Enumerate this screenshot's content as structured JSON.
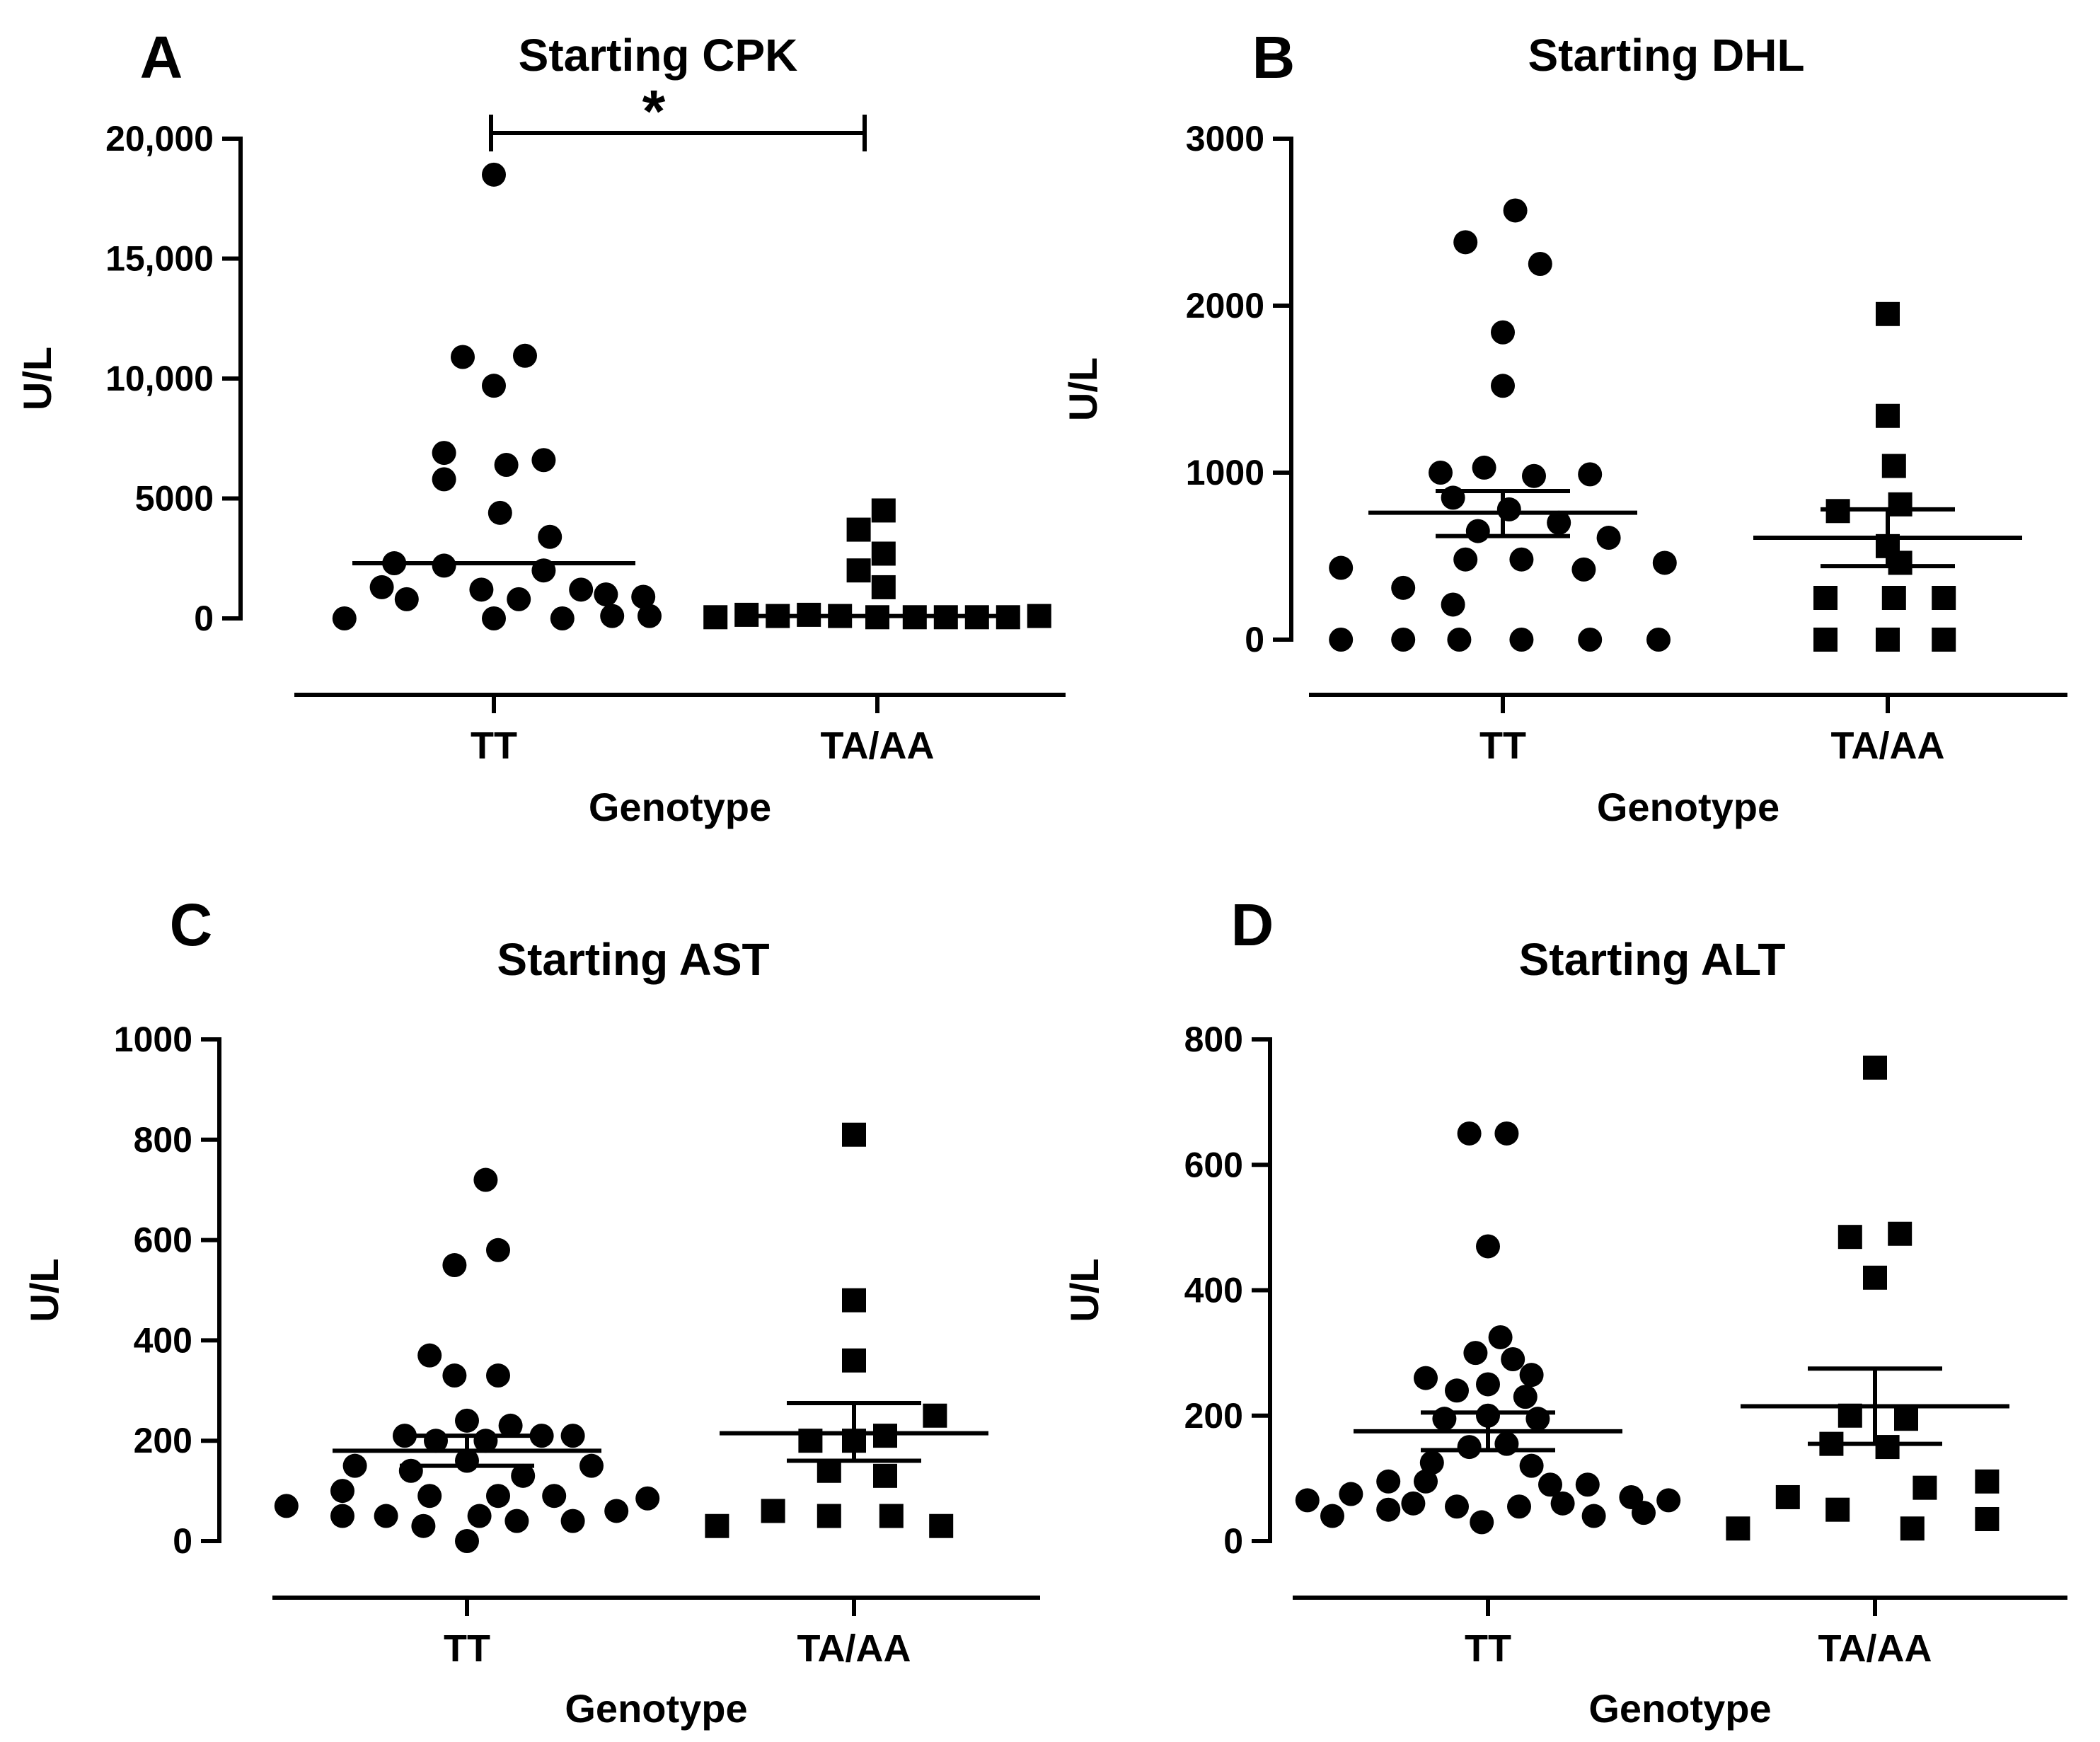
{
  "chart_data": [
    {
      "type": "scatter",
      "panel": "A",
      "title": "Starting CPK",
      "xlabel": "Genotype",
      "ylabel": "U/L",
      "ylim": [
        0,
        20000
      ],
      "yticks": [
        0,
        5000,
        10000,
        15000,
        20000
      ],
      "ytick_labels": [
        "0",
        "5000",
        "10,000",
        "15,000",
        "20,000"
      ],
      "categories": [
        "TT",
        "TA/AA"
      ],
      "significance": {
        "label": "*",
        "between": [
          "TT",
          "TA/AA"
        ]
      },
      "series": [
        {
          "name": "TT",
          "marker": "circle",
          "mean": 2300,
          "sem_low": 2300,
          "sem_high": 2300,
          "points": [
            {
              "offset": 0.0,
              "y": 18500
            },
            {
              "offset": -0.25,
              "y": 10900
            },
            {
              "offset": 0.25,
              "y": 10950
            },
            {
              "offset": 0.0,
              "y": 9700
            },
            {
              "offset": -0.4,
              "y": 6900
            },
            {
              "offset": 0.1,
              "y": 6400
            },
            {
              "offset": 0.4,
              "y": 6600
            },
            {
              "offset": -0.4,
              "y": 5800
            },
            {
              "offset": 0.05,
              "y": 4400
            },
            {
              "offset": 0.45,
              "y": 3400
            },
            {
              "offset": -0.9,
              "y": 1300
            },
            {
              "offset": -0.7,
              "y": 800
            },
            {
              "offset": -0.8,
              "y": 2300
            },
            {
              "offset": -0.4,
              "y": 2200
            },
            {
              "offset": -0.1,
              "y": 1200
            },
            {
              "offset": 0.2,
              "y": 800
            },
            {
              "offset": 0.4,
              "y": 2000
            },
            {
              "offset": 0.7,
              "y": 1200
            },
            {
              "offset": 0.9,
              "y": 1000
            },
            {
              "offset": 1.2,
              "y": 900
            },
            {
              "offset": -1.2,
              "y": 0
            },
            {
              "offset": 0.0,
              "y": 0
            },
            {
              "offset": 0.55,
              "y": 0
            },
            {
              "offset": 0.95,
              "y": 100
            },
            {
              "offset": 1.25,
              "y": 100
            }
          ]
        },
        {
          "name": "TA/AA",
          "marker": "square",
          "mean": 100,
          "sem_low": 100,
          "sem_high": 100,
          "points": [
            {
              "offset": 0.05,
              "y": 4500
            },
            {
              "offset": -0.15,
              "y": 3700
            },
            {
              "offset": 0.05,
              "y": 2700
            },
            {
              "offset": -0.15,
              "y": 2000
            },
            {
              "offset": 0.05,
              "y": 1300
            },
            {
              "offset": -1.3,
              "y": 50
            },
            {
              "offset": -1.05,
              "y": 150
            },
            {
              "offset": -0.8,
              "y": 100
            },
            {
              "offset": -0.55,
              "y": 150
            },
            {
              "offset": -0.3,
              "y": 100
            },
            {
              "offset": 0.0,
              "y": 50
            },
            {
              "offset": 0.3,
              "y": 50
            },
            {
              "offset": 0.55,
              "y": 50
            },
            {
              "offset": 0.8,
              "y": 50
            },
            {
              "offset": 1.05,
              "y": 50
            },
            {
              "offset": 1.3,
              "y": 100
            }
          ]
        }
      ]
    },
    {
      "type": "scatter",
      "panel": "B",
      "title": "Starting DHL",
      "xlabel": "Genotype",
      "ylabel": "U/L",
      "ylim": [
        0,
        3000
      ],
      "yticks": [
        0,
        1000,
        2000,
        3000
      ],
      "ytick_labels": [
        "0",
        "1000",
        "2000",
        "3000"
      ],
      "categories": [
        "TT",
        "TA/AA"
      ],
      "series": [
        {
          "name": "TT",
          "marker": "circle",
          "mean": 760,
          "sem_low": 620,
          "sem_high": 890,
          "points": [
            {
              "offset": 0.1,
              "y": 2570
            },
            {
              "offset": -0.3,
              "y": 2380
            },
            {
              "offset": 0.3,
              "y": 2250
            },
            {
              "offset": 0.0,
              "y": 1840
            },
            {
              "offset": 0.0,
              "y": 1520
            },
            {
              "offset": -0.5,
              "y": 1000
            },
            {
              "offset": -0.15,
              "y": 1030
            },
            {
              "offset": 0.25,
              "y": 980
            },
            {
              "offset": 0.7,
              "y": 990
            },
            {
              "offset": -0.4,
              "y": 850
            },
            {
              "offset": 0.05,
              "y": 780
            },
            {
              "offset": -0.2,
              "y": 650
            },
            {
              "offset": 0.45,
              "y": 700
            },
            {
              "offset": 0.85,
              "y": 610
            },
            {
              "offset": -1.3,
              "y": 430
            },
            {
              "offset": -0.8,
              "y": 310
            },
            {
              "offset": -0.3,
              "y": 480
            },
            {
              "offset": 0.15,
              "y": 480
            },
            {
              "offset": 0.65,
              "y": 420
            },
            {
              "offset": 1.3,
              "y": 460
            },
            {
              "offset": -0.4,
              "y": 210
            },
            {
              "offset": -1.3,
              "y": 0
            },
            {
              "offset": -0.8,
              "y": 0
            },
            {
              "offset": -0.35,
              "y": 0
            },
            {
              "offset": 0.15,
              "y": 0
            },
            {
              "offset": 0.7,
              "y": 0
            },
            {
              "offset": 1.25,
              "y": 0
            }
          ]
        },
        {
          "name": "TA/AA",
          "marker": "square",
          "mean": 610,
          "sem_low": 440,
          "sem_high": 780,
          "points": [
            {
              "offset": 0.0,
              "y": 1950
            },
            {
              "offset": 0.0,
              "y": 1340
            },
            {
              "offset": 0.05,
              "y": 1040
            },
            {
              "offset": -0.4,
              "y": 770
            },
            {
              "offset": 0.1,
              "y": 810
            },
            {
              "offset": 0.0,
              "y": 560
            },
            {
              "offset": 0.1,
              "y": 460
            },
            {
              "offset": -0.5,
              "y": 250
            },
            {
              "offset": 0.05,
              "y": 250
            },
            {
              "offset": 0.45,
              "y": 250
            },
            {
              "offset": -0.5,
              "y": 0
            },
            {
              "offset": 0.0,
              "y": 0
            },
            {
              "offset": 0.45,
              "y": 0
            }
          ]
        }
      ]
    },
    {
      "type": "scatter",
      "panel": "C",
      "title": "Starting AST",
      "xlabel": "Genotype",
      "ylabel": "U/L",
      "ylim": [
        0,
        1000
      ],
      "yticks": [
        0,
        200,
        400,
        600,
        800,
        1000
      ],
      "ytick_labels": [
        "0",
        "200",
        "400",
        "600",
        "800",
        "1000"
      ],
      "categories": [
        "TT",
        "TA/AA"
      ],
      "series": [
        {
          "name": "TT",
          "marker": "circle",
          "mean": 180,
          "sem_low": 150,
          "sem_high": 210,
          "points": [
            {
              "offset": 0.15,
              "y": 720
            },
            {
              "offset": 0.25,
              "y": 580
            },
            {
              "offset": -0.1,
              "y": 550
            },
            {
              "offset": -0.3,
              "y": 370
            },
            {
              "offset": -0.1,
              "y": 330
            },
            {
              "offset": 0.25,
              "y": 330
            },
            {
              "offset": 0.0,
              "y": 240
            },
            {
              "offset": 0.35,
              "y": 230
            },
            {
              "offset": -0.5,
              "y": 210
            },
            {
              "offset": -0.25,
              "y": 200
            },
            {
              "offset": 0.15,
              "y": 200
            },
            {
              "offset": 0.6,
              "y": 210
            },
            {
              "offset": 0.85,
              "y": 210
            },
            {
              "offset": -0.9,
              "y": 150
            },
            {
              "offset": -0.45,
              "y": 140
            },
            {
              "offset": 0.0,
              "y": 160
            },
            {
              "offset": 0.45,
              "y": 130
            },
            {
              "offset": 1.0,
              "y": 150
            },
            {
              "offset": -1.0,
              "y": 100
            },
            {
              "offset": -0.3,
              "y": 90
            },
            {
              "offset": 0.25,
              "y": 90
            },
            {
              "offset": 0.7,
              "y": 90
            },
            {
              "offset": 1.45,
              "y": 85
            },
            {
              "offset": -1.45,
              "y": 70
            },
            {
              "offset": -1.0,
              "y": 50
            },
            {
              "offset": -0.65,
              "y": 50
            },
            {
              "offset": -0.35,
              "y": 30
            },
            {
              "offset": 0.1,
              "y": 50
            },
            {
              "offset": 0.4,
              "y": 40
            },
            {
              "offset": 0.85,
              "y": 40
            },
            {
              "offset": 1.2,
              "y": 60
            },
            {
              "offset": 0.0,
              "y": 0
            }
          ]
        },
        {
          "name": "TA/AA",
          "marker": "square",
          "mean": 215,
          "sem_low": 160,
          "sem_high": 275,
          "points": [
            {
              "offset": 0.0,
              "y": 810
            },
            {
              "offset": 0.0,
              "y": 480
            },
            {
              "offset": 0.0,
              "y": 360
            },
            {
              "offset": 0.65,
              "y": 250
            },
            {
              "offset": 0.25,
              "y": 210
            },
            {
              "offset": -0.35,
              "y": 200
            },
            {
              "offset": 0.0,
              "y": 200
            },
            {
              "offset": -0.2,
              "y": 140
            },
            {
              "offset": 0.25,
              "y": 130
            },
            {
              "offset": -0.65,
              "y": 60
            },
            {
              "offset": -0.2,
              "y": 50
            },
            {
              "offset": 0.3,
              "y": 50
            },
            {
              "offset": -1.1,
              "y": 30
            },
            {
              "offset": 0.7,
              "y": 30
            }
          ]
        }
      ]
    },
    {
      "type": "scatter",
      "panel": "D",
      "title": "Starting ALT",
      "xlabel": "Genotype",
      "ylabel": "U/L",
      "ylim": [
        0,
        800
      ],
      "yticks": [
        0,
        200,
        400,
        600,
        800
      ],
      "ytick_labels": [
        "0",
        "200",
        "400",
        "600",
        "800"
      ],
      "categories": [
        "TT",
        "TA/AA"
      ],
      "series": [
        {
          "name": "TT",
          "marker": "circle",
          "mean": 175,
          "sem_low": 145,
          "sem_high": 205,
          "points": [
            {
              "offset": -0.15,
              "y": 650
            },
            {
              "offset": 0.15,
              "y": 650
            },
            {
              "offset": 0.0,
              "y": 470
            },
            {
              "offset": 0.1,
              "y": 325
            },
            {
              "offset": -0.1,
              "y": 300
            },
            {
              "offset": 0.2,
              "y": 290
            },
            {
              "offset": -0.5,
              "y": 260
            },
            {
              "offset": 0.35,
              "y": 265
            },
            {
              "offset": -0.25,
              "y": 240
            },
            {
              "offset": 0.0,
              "y": 250
            },
            {
              "offset": 0.3,
              "y": 230
            },
            {
              "offset": -0.35,
              "y": 195
            },
            {
              "offset": 0.0,
              "y": 200
            },
            {
              "offset": 0.4,
              "y": 195
            },
            {
              "offset": -0.15,
              "y": 150
            },
            {
              "offset": 0.15,
              "y": 155
            },
            {
              "offset": -0.45,
              "y": 125
            },
            {
              "offset": 0.35,
              "y": 120
            },
            {
              "offset": -0.8,
              "y": 95
            },
            {
              "offset": 0.8,
              "y": 90
            },
            {
              "offset": -0.5,
              "y": 95
            },
            {
              "offset": 0.5,
              "y": 90
            },
            {
              "offset": -1.45,
              "y": 65
            },
            {
              "offset": -1.1,
              "y": 75
            },
            {
              "offset": -0.6,
              "y": 60
            },
            {
              "offset": -0.25,
              "y": 55
            },
            {
              "offset": 0.25,
              "y": 55
            },
            {
              "offset": 0.6,
              "y": 60
            },
            {
              "offset": 1.15,
              "y": 70
            },
            {
              "offset": 1.45,
              "y": 65
            },
            {
              "offset": -1.25,
              "y": 40
            },
            {
              "offset": -0.8,
              "y": 50
            },
            {
              "offset": -0.05,
              "y": 30
            },
            {
              "offset": 0.85,
              "y": 40
            },
            {
              "offset": 1.25,
              "y": 45
            }
          ]
        },
        {
          "name": "TA/AA",
          "marker": "square",
          "mean": 215,
          "sem_low": 155,
          "sem_high": 275,
          "points": [
            {
              "offset": 0.0,
              "y": 755
            },
            {
              "offset": 0.2,
              "y": 490
            },
            {
              "offset": -0.2,
              "y": 485
            },
            {
              "offset": 0.0,
              "y": 420
            },
            {
              "offset": -0.2,
              "y": 200
            },
            {
              "offset": 0.25,
              "y": 195
            },
            {
              "offset": -0.35,
              "y": 155
            },
            {
              "offset": 0.1,
              "y": 150
            },
            {
              "offset": -0.7,
              "y": 70
            },
            {
              "offset": 0.4,
              "y": 85
            },
            {
              "offset": 0.9,
              "y": 95
            },
            {
              "offset": -0.3,
              "y": 50
            },
            {
              "offset": -1.1,
              "y": 20
            },
            {
              "offset": 0.3,
              "y": 20
            },
            {
              "offset": 0.9,
              "y": 35
            }
          ]
        }
      ]
    }
  ]
}
